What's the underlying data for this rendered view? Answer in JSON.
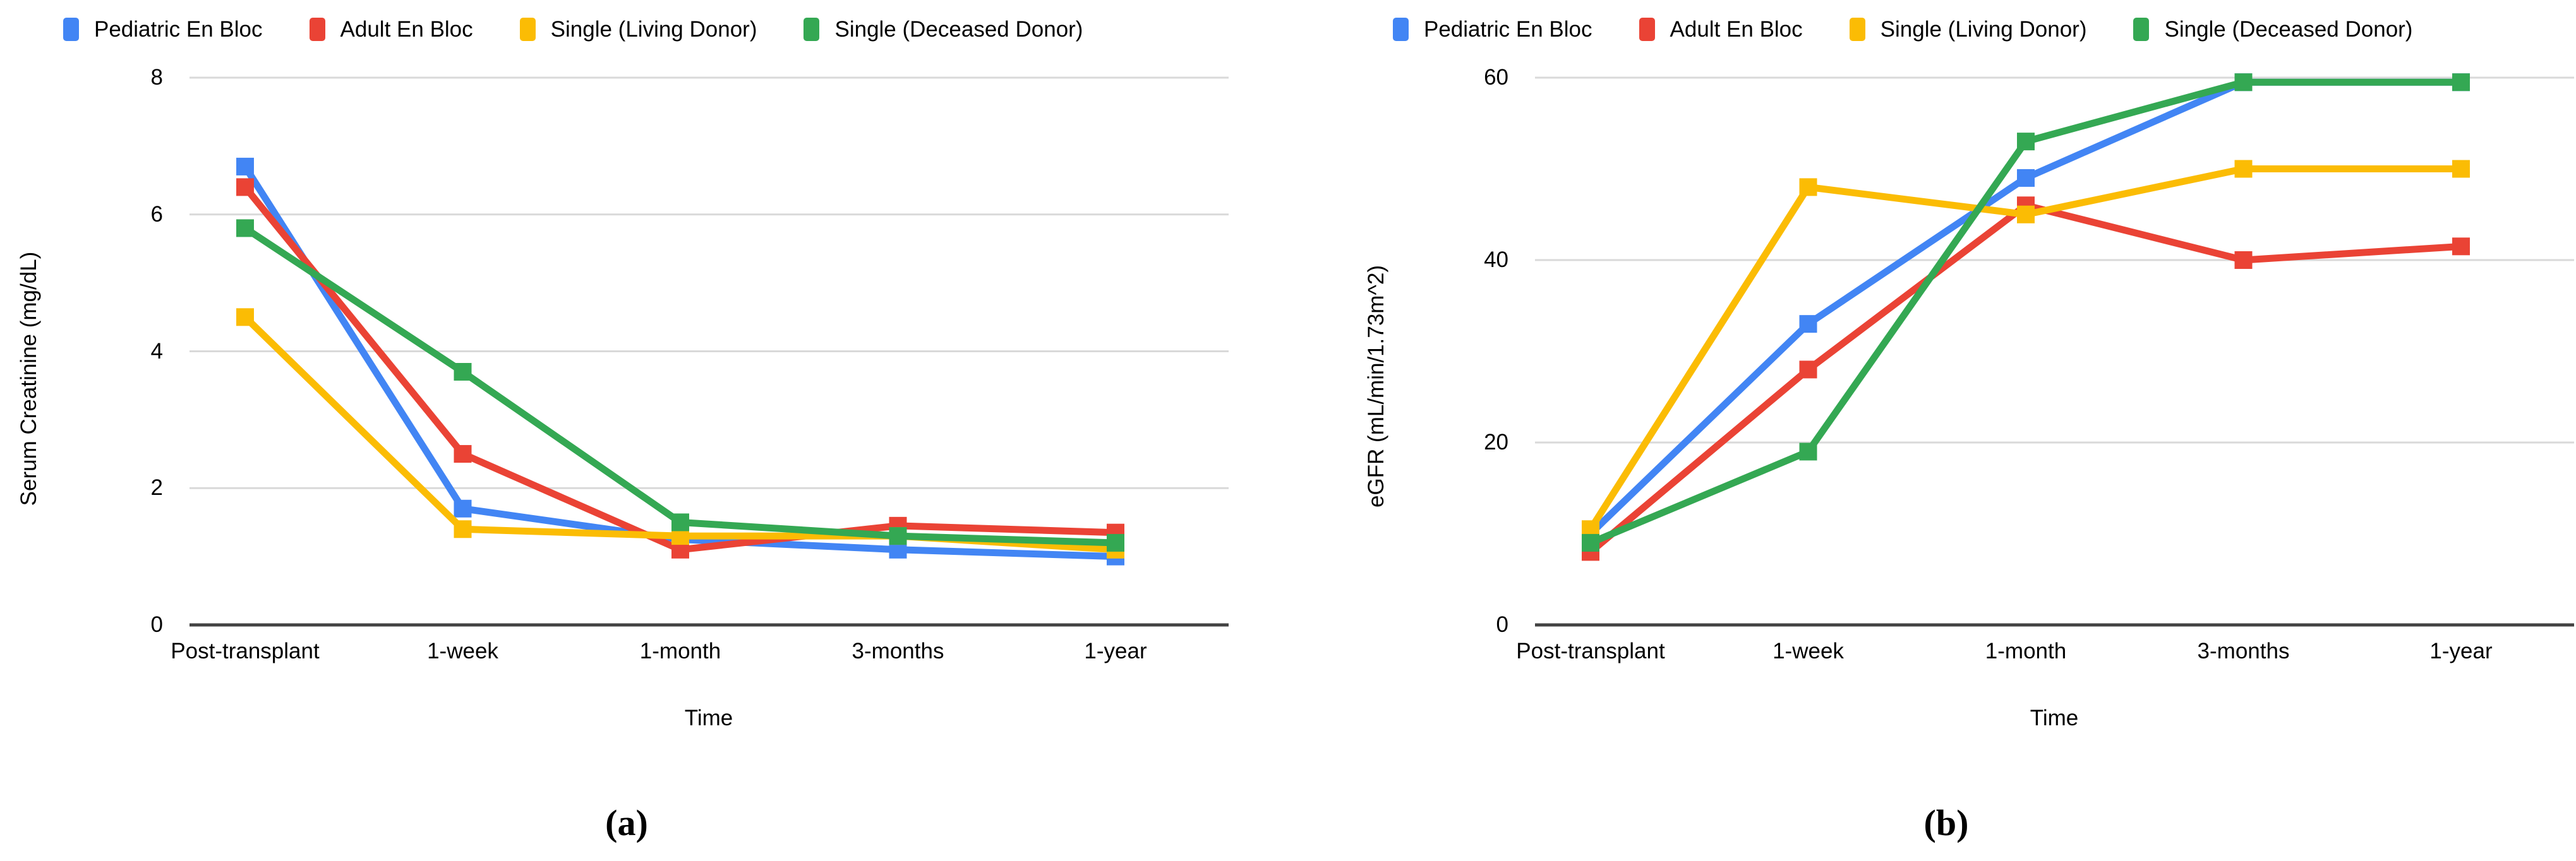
{
  "figure": {
    "background": "#ffffff",
    "grid_color": "#d9d9d9",
    "axis_color": "#424242",
    "text_color": "#000000",
    "panels": [
      {
        "caption": "(a)"
      },
      {
        "caption": "(b)"
      }
    ]
  },
  "chart_data": [
    {
      "type": "line",
      "title": "",
      "xlabel": "Time",
      "ylabel": "Serum Creatinine (mg/dL)",
      "categories": [
        "Post-transplant",
        "1-week",
        "1-month",
        "3-months",
        "1-year"
      ],
      "yticks": [
        0,
        2,
        4,
        6,
        8
      ],
      "ylim": [
        0,
        8
      ],
      "grid": true,
      "legend_position": "top",
      "marker": "square",
      "series": [
        {
          "name": "Pediatric En Bloc",
          "color": "#4285F4",
          "values": [
            6.7,
            1.7,
            1.25,
            1.1,
            1.0
          ]
        },
        {
          "name": "Adult En Bloc",
          "color": "#EA4335",
          "values": [
            6.4,
            2.5,
            1.1,
            1.45,
            1.35
          ]
        },
        {
          "name": "Single (Living Donor)",
          "color": "#FBBC04",
          "values": [
            4.5,
            1.4,
            1.3,
            1.3,
            1.1
          ]
        },
        {
          "name": "Single (Deceased Donor)",
          "color": "#34A853",
          "values": [
            5.8,
            3.7,
            1.5,
            1.3,
            1.2
          ]
        }
      ]
    },
    {
      "type": "line",
      "title": "",
      "xlabel": "Time",
      "ylabel": "eGFR (mL/min/1.73m^2)",
      "categories": [
        "Post-transplant",
        "1-week",
        "1-month",
        "3-months",
        "1-year"
      ],
      "yticks": [
        0,
        20,
        40,
        60
      ],
      "ylim": [
        0,
        60
      ],
      "grid": true,
      "legend_position": "top",
      "marker": "square",
      "series": [
        {
          "name": "Pediatric En Bloc",
          "color": "#4285F4",
          "values": [
            10,
            33,
            49,
            59.5,
            59.5
          ]
        },
        {
          "name": "Adult En Bloc",
          "color": "#EA4335",
          "values": [
            8,
            28,
            46,
            40,
            41.5
          ]
        },
        {
          "name": "Single (Living Donor)",
          "color": "#FBBC04",
          "values": [
            10.5,
            48,
            45,
            50,
            50
          ]
        },
        {
          "name": "Single (Deceased Donor)",
          "color": "#34A853",
          "values": [
            9,
            19,
            53,
            59.5,
            59.5
          ]
        }
      ]
    }
  ]
}
